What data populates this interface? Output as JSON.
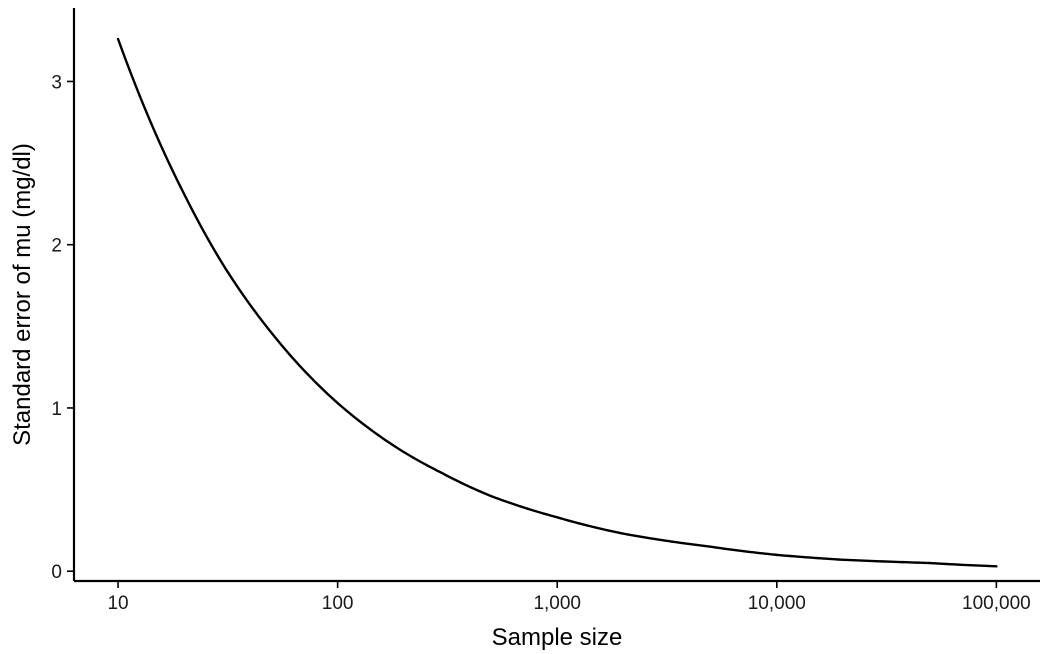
{
  "chart_data": {
    "type": "line",
    "title": "",
    "xlabel": "Sample size",
    "ylabel": "Standard error of mu (mg/dl)",
    "xscale": "log10",
    "xlim": [
      6.3,
      158000
    ],
    "ylim": [
      -0.06,
      3.45
    ],
    "xticks": [
      {
        "value": 10,
        "label": "10"
      },
      {
        "value": 100,
        "label": "100"
      },
      {
        "value": 1000,
        "label": "1,000"
      },
      {
        "value": 10000,
        "label": "10,000"
      },
      {
        "value": 100000,
        "label": "100,000"
      }
    ],
    "yticks": [
      {
        "value": 0,
        "label": "0"
      },
      {
        "value": 1,
        "label": "1"
      },
      {
        "value": 2,
        "label": "2"
      },
      {
        "value": 3,
        "label": "3"
      }
    ],
    "grid": false,
    "legend": "none",
    "series": [
      {
        "color": "#000000",
        "x": [
          10,
          20,
          30,
          50,
          100,
          200,
          300,
          500,
          1000,
          2000,
          5000,
          10000,
          20000,
          50000,
          100000
        ],
        "y": [
          3.26,
          2.31,
          1.88,
          1.46,
          1.03,
          0.73,
          0.6,
          0.46,
          0.33,
          0.23,
          0.15,
          0.1,
          0.07,
          0.05,
          0.03
        ]
      }
    ]
  }
}
